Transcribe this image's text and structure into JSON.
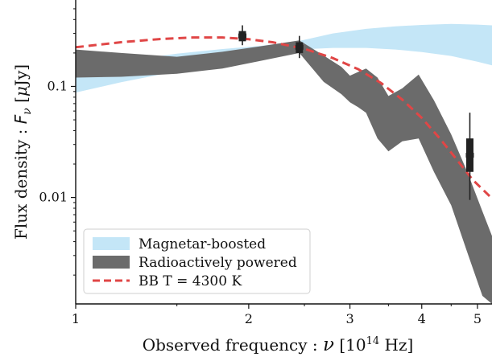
{
  "chart_data": {
    "type": "area",
    "xscale": "log",
    "yscale": "log",
    "xlim": [
      1.0,
      5.3
    ],
    "ylim": [
      0.0011,
      0.6
    ],
    "xlabel": {
      "prefix": "Observed frequency : ",
      "symbol": "ν",
      "unit_open": " [10",
      "unit_exp": "14",
      "unit_close": " Hz]"
    },
    "ylabel": {
      "prefix": "Flux density : ",
      "symbol": "F",
      "sub": "ν",
      "unit_open": " [",
      "unit_mu": "μ",
      "unit_close": "Jy]"
    },
    "x_ticks": [
      {
        "value": 1,
        "label": "1"
      },
      {
        "value": 2,
        "label": "2"
      },
      {
        "value": 3,
        "label": "3"
      },
      {
        "value": 4,
        "label": "4"
      },
      {
        "value": 5,
        "label": "5"
      }
    ],
    "y_ticks": [
      {
        "value": 0.1,
        "label": "0.1"
      },
      {
        "value": 0.01,
        "label": "0.01"
      }
    ],
    "grid": false,
    "legend": {
      "position": "lower-left",
      "entries": [
        {
          "label": "Magnetar-boosted",
          "color": "#c4e6f7",
          "kind": "band"
        },
        {
          "label": "Radioactively powered",
          "color": "#6b6b6b",
          "kind": "band"
        },
        {
          "label": "BB T = 4300 K",
          "color": "#e04646",
          "kind": "dashed-line"
        }
      ]
    },
    "series": [
      {
        "name": "Magnetar-boosted",
        "kind": "band",
        "color": "#c4e6f7",
        "x": [
          1.0,
          1.2,
          1.5,
          1.8,
          2.1,
          2.45,
          2.8,
          3.2,
          3.6,
          4.0,
          4.5,
          5.0,
          5.3
        ],
        "lower": [
          0.088,
          0.109,
          0.137,
          0.163,
          0.187,
          0.215,
          0.222,
          0.222,
          0.215,
          0.204,
          0.188,
          0.167,
          0.155
        ],
        "upper": [
          0.142,
          0.168,
          0.197,
          0.217,
          0.232,
          0.257,
          0.3,
          0.33,
          0.348,
          0.358,
          0.365,
          0.36,
          0.355
        ]
      },
      {
        "name": "Radioactively powered",
        "kind": "band",
        "color": "#6b6b6b",
        "x": [
          1.0,
          1.2,
          1.5,
          1.8,
          2.1,
          2.45,
          2.7,
          2.9,
          3.0,
          3.1,
          3.2,
          3.35,
          3.5,
          3.7,
          3.95,
          4.2,
          4.5,
          4.8,
          5.1,
          5.3
        ],
        "lower": [
          0.12,
          0.122,
          0.13,
          0.145,
          0.17,
          0.2,
          0.11,
          0.085,
          0.072,
          0.065,
          0.058,
          0.034,
          0.026,
          0.032,
          0.034,
          0.017,
          0.0085,
          0.0032,
          0.0013,
          0.0011
        ],
        "upper": [
          0.215,
          0.2,
          0.185,
          0.205,
          0.23,
          0.26,
          0.19,
          0.15,
          0.125,
          0.135,
          0.145,
          0.12,
          0.082,
          0.096,
          0.128,
          0.075,
          0.037,
          0.017,
          0.0075,
          0.0045
        ]
      },
      {
        "name": "BB T = 4300 K",
        "kind": "dashed-line",
        "color": "#e04646",
        "x": [
          1.0,
          1.2,
          1.4,
          1.6,
          1.8,
          2.0,
          2.2,
          2.5,
          2.8,
          3.1,
          3.4,
          3.7,
          4.0,
          4.3,
          4.6,
          4.9,
          5.3
        ],
        "y": [
          0.225,
          0.25,
          0.267,
          0.276,
          0.276,
          0.266,
          0.25,
          0.218,
          0.18,
          0.143,
          0.107,
          0.076,
          0.052,
          0.034,
          0.022,
          0.0145,
          0.0098
        ]
      }
    ],
    "points": [
      {
        "x": 1.95,
        "y": 0.285,
        "y_lo": 0.235,
        "y_hi": 0.355,
        "box_lo": 0.255,
        "box_hi": 0.315,
        "color": "#222222"
      },
      {
        "x": 2.45,
        "y": 0.225,
        "y_lo": 0.18,
        "y_hi": 0.285,
        "box_lo": 0.2,
        "box_hi": 0.25,
        "color": "#222222"
      },
      {
        "x": 4.85,
        "y": 0.024,
        "y_lo": 0.0095,
        "y_hi": 0.058,
        "box_lo": 0.017,
        "box_hi": 0.034,
        "color": "#222222"
      }
    ]
  }
}
